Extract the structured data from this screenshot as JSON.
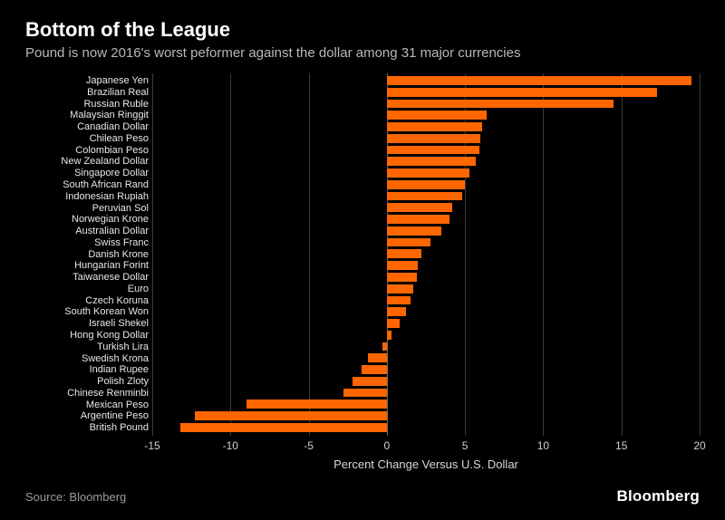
{
  "title": "Bottom of the League",
  "subtitle": "Pound is now 2016's worst peformer against the dollar among 31 major currencies",
  "source": "Source: Bloomberg",
  "brand": "Bloomberg",
  "chart": {
    "type": "bar",
    "orientation": "horizontal",
    "x_axis_title": "Percent Change Versus U.S. Dollar",
    "xlim": [
      -15,
      20
    ],
    "xtick_values": [
      -15,
      -10,
      -5,
      0,
      5,
      10,
      15,
      20
    ],
    "xtick_labels": [
      "-15",
      "-10",
      "-5",
      "0",
      "5",
      "10",
      "15",
      "20"
    ],
    "background_color": "#000000",
    "grid_color": "#3a3a3a",
    "zero_line_color": "#6a6a6a",
    "bar_color": "#ff6600",
    "title_color": "#ffffff",
    "subtitle_color": "#b8b8b8",
    "label_color": "#e8e8e8",
    "tick_color": "#d0d0d0",
    "title_fontsize": 22,
    "subtitle_fontsize": 15,
    "label_fontsize": 11,
    "tick_fontsize": 12,
    "series": [
      {
        "label": "Japanese Yen",
        "value": 19.5
      },
      {
        "label": "Brazilian Real",
        "value": 17.3
      },
      {
        "label": "Russian Ruble",
        "value": 14.5
      },
      {
        "label": "Malaysian Ringgit",
        "value": 6.4
      },
      {
        "label": "Canadian Dollar",
        "value": 6.1
      },
      {
        "label": "Chilean Peso",
        "value": 6.0
      },
      {
        "label": "Colombian Peso",
        "value": 5.9
      },
      {
        "label": "New Zealand Dollar",
        "value": 5.7
      },
      {
        "label": "Singapore Dollar",
        "value": 5.3
      },
      {
        "label": "South African Rand",
        "value": 5.0
      },
      {
        "label": "Indonesian Rupiah",
        "value": 4.8
      },
      {
        "label": "Peruvian Sol",
        "value": 4.2
      },
      {
        "label": "Norwegian Krone",
        "value": 4.0
      },
      {
        "label": "Australian Dollar",
        "value": 3.5
      },
      {
        "label": "Swiss Franc",
        "value": 2.8
      },
      {
        "label": "Danish Krone",
        "value": 2.2
      },
      {
        "label": "Hungarian Forint",
        "value": 2.0
      },
      {
        "label": "Taiwanese Dollar",
        "value": 1.9
      },
      {
        "label": "Euro",
        "value": 1.7
      },
      {
        "label": "Czech Koruna",
        "value": 1.5
      },
      {
        "label": "South Korean Won",
        "value": 1.2
      },
      {
        "label": "Israeli Shekel",
        "value": 0.8
      },
      {
        "label": "Hong Kong Dollar",
        "value": 0.3
      },
      {
        "label": "Turkish Lira",
        "value": -0.3
      },
      {
        "label": "Swedish Krona",
        "value": -1.2
      },
      {
        "label": "Indian Rupee",
        "value": -1.6
      },
      {
        "label": "Polish Zloty",
        "value": -2.2
      },
      {
        "label": "Chinese Renminbi",
        "value": -2.8
      },
      {
        "label": "Mexican Peso",
        "value": -9.0
      },
      {
        "label": "Argentine Peso",
        "value": -12.3
      },
      {
        "label": "British Pound",
        "value": -13.2
      }
    ]
  }
}
